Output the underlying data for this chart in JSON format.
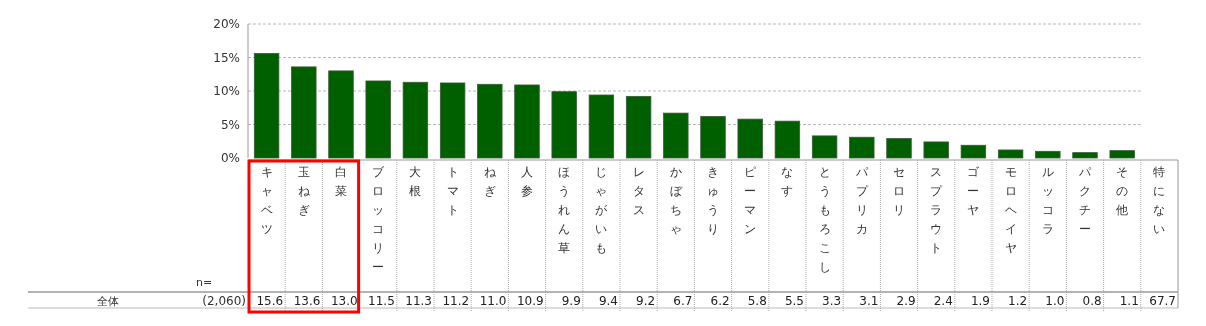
{
  "chart_data": {
    "type": "bar",
    "categories": [
      "キャベツ",
      "玉ねぎ",
      "白菜",
      "ブロッコリー",
      "大根",
      "トマト",
      "ねぎ",
      "人参",
      "ほうれん草",
      "じゃがいも",
      "レタス",
      "かぼちゃ",
      "きゅうり",
      "ピーマン",
      "なす",
      "とうもろこし",
      "パプリカ",
      "セロリ",
      "スプラウト",
      "ゴーヤ",
      "モロヘイヤ",
      "ルッコラ",
      "パクチー",
      "その他",
      "特にない"
    ],
    "values": [
      15.6,
      13.6,
      13.0,
      11.5,
      11.3,
      11.2,
      11.0,
      10.9,
      9.9,
      9.4,
      9.2,
      6.7,
      6.2,
      5.8,
      5.5,
      3.3,
      3.1,
      2.9,
      2.4,
      1.9,
      1.2,
      1.0,
      0.8,
      1.1,
      null
    ],
    "value_labels": [
      "15.6",
      "13.6",
      "13.0",
      "11.5",
      "11.3",
      "11.2",
      "11.0",
      "10.9",
      "9.9",
      "9.4",
      "9.2",
      "6.7",
      "6.2",
      "5.8",
      "5.5",
      "3.3",
      "3.1",
      "2.9",
      "2.4",
      "1.9",
      "1.2",
      "1.0",
      "0.8",
      "1.1",
      "67.7"
    ],
    "color": "#006000",
    "ylim": [
      0,
      20
    ],
    "yticks": [
      {
        "value": 0,
        "label": "0%"
      },
      {
        "value": 5,
        "label": "5%"
      },
      {
        "value": 10,
        "label": "10%"
      },
      {
        "value": 15,
        "label": "15%"
      },
      {
        "value": 20,
        "label": "20%"
      }
    ],
    "grid": "y",
    "annotations": [
      "n=",
      "全体",
      "(2,060)"
    ]
  }
}
